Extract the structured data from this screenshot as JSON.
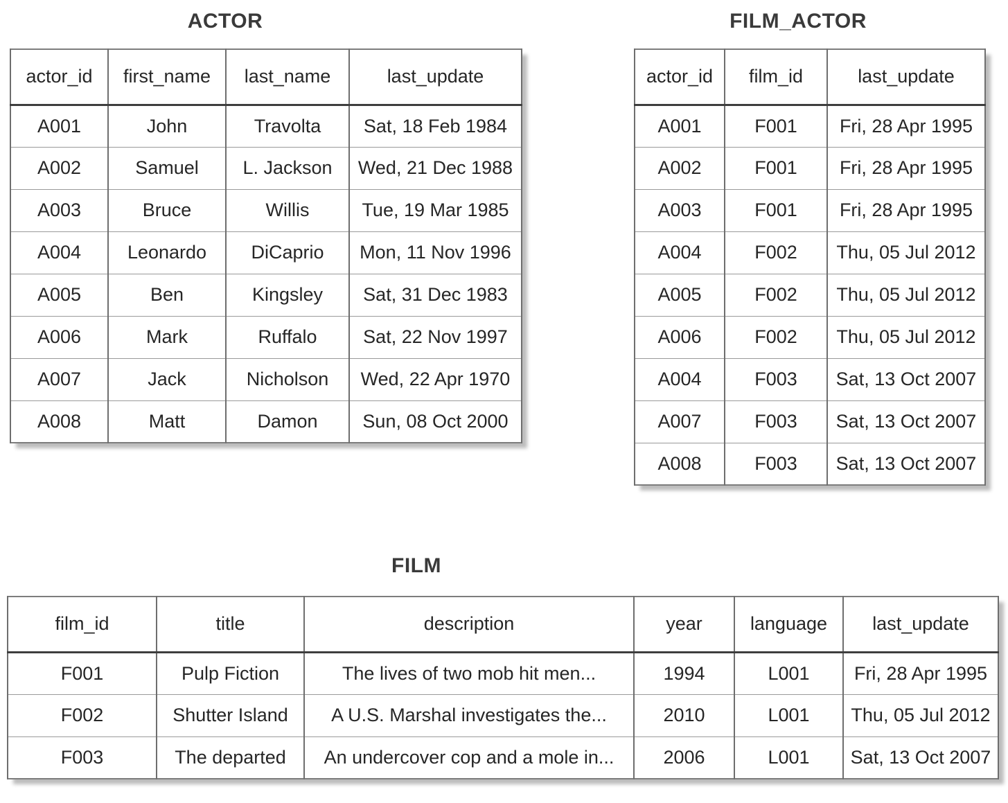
{
  "colors": {
    "bg": "#ffffff",
    "cell_text": "#262626",
    "title_text": "#3a3a3a",
    "outer_border": "#7d7d7d",
    "shadow": "#bdbdbd"
  },
  "tables": [
    {
      "name": "actor",
      "title": "ACTOR",
      "columns": [
        "actor_id",
        "first_name",
        "last_name",
        "last_update"
      ],
      "rows": [
        [
          "A001",
          "John",
          "Travolta",
          "Sat, 18 Feb 1984"
        ],
        [
          "A002",
          "Samuel",
          "L. Jackson",
          "Wed, 21 Dec 1988"
        ],
        [
          "A003",
          "Bruce",
          "Willis",
          "Tue, 19 Mar 1985"
        ],
        [
          "A004",
          "Leonardo",
          "DiCaprio",
          "Mon, 11 Nov 1996"
        ],
        [
          "A005",
          "Ben",
          "Kingsley",
          "Sat, 31 Dec 1983"
        ],
        [
          "A006",
          "Mark",
          "Ruffalo",
          "Sat, 22 Nov 1997"
        ],
        [
          "A007",
          "Jack",
          "Nicholson",
          "Wed, 22 Apr 1970"
        ],
        [
          "A008",
          "Matt",
          "Damon",
          "Sun, 08 Oct 2000"
        ]
      ]
    },
    {
      "name": "film_actor",
      "title": "FILM_ACTOR",
      "columns": [
        "actor_id",
        "film_id",
        "last_update"
      ],
      "rows": [
        [
          "A001",
          "F001",
          "Fri, 28 Apr 1995"
        ],
        [
          "A002",
          "F001",
          "Fri, 28 Apr 1995"
        ],
        [
          "A003",
          "F001",
          "Fri, 28 Apr 1995"
        ],
        [
          "A004",
          "F002",
          "Thu, 05 Jul 2012"
        ],
        [
          "A005",
          "F002",
          "Thu, 05 Jul 2012"
        ],
        [
          "A006",
          "F002",
          "Thu, 05 Jul 2012"
        ],
        [
          "A004",
          "F003",
          "Sat, 13 Oct 2007"
        ],
        [
          "A007",
          "F003",
          "Sat, 13 Oct 2007"
        ],
        [
          "A008",
          "F003",
          "Sat, 13 Oct 2007"
        ]
      ]
    },
    {
      "name": "film",
      "title": "FILM",
      "columns": [
        "film_id",
        "title",
        "description",
        "year",
        "language",
        "last_update"
      ],
      "rows": [
        [
          "F001",
          "Pulp Fiction",
          "The lives of two mob hit men...",
          "1994",
          "L001",
          "Fri, 28 Apr 1995"
        ],
        [
          "F002",
          "Shutter Island",
          "A U.S. Marshal investigates the...",
          "2010",
          "L001",
          "Thu, 05 Jul 2012"
        ],
        [
          "F003",
          "The departed",
          "An undercover cop and a mole in...",
          "2006",
          "L001",
          "Sat, 13 Oct 2007"
        ]
      ]
    }
  ]
}
